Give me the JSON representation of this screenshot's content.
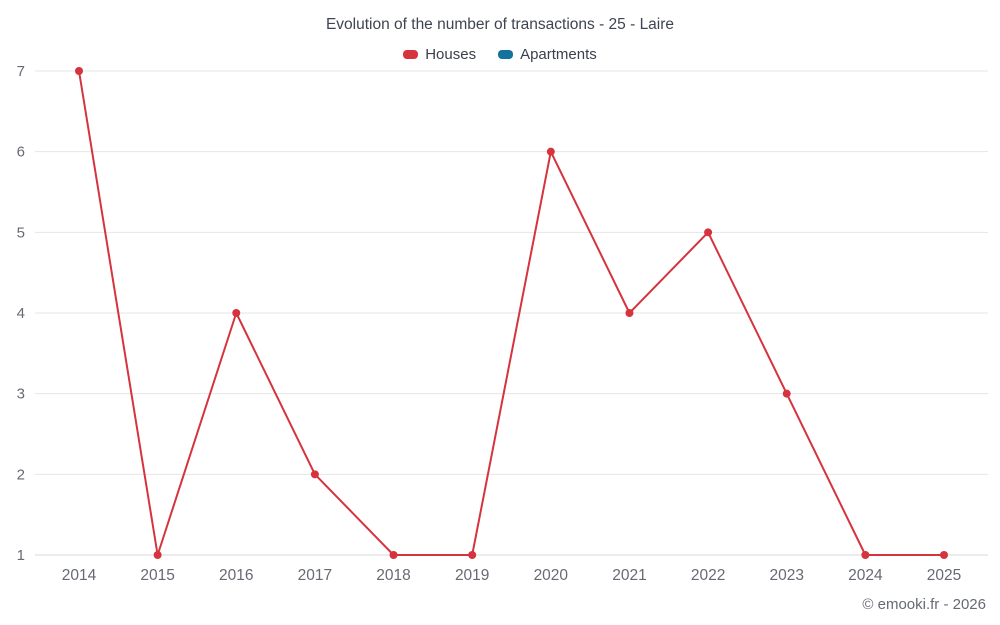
{
  "title": "Evolution of the number of transactions - 25 - Laire",
  "footer": "© emooki.fr - 2026",
  "legend": [
    {
      "label": "Houses",
      "color": "#d5343e"
    },
    {
      "label": "Apartments",
      "color": "#13739e"
    }
  ],
  "chart_data": {
    "type": "line",
    "x": [
      2014,
      2015,
      2016,
      2017,
      2018,
      2019,
      2020,
      2021,
      2022,
      2023,
      2024,
      2025
    ],
    "series": [
      {
        "name": "Houses",
        "color": "#d5343e",
        "values": [
          7,
          1,
          4,
          2,
          1,
          1,
          6,
          4,
          5,
          3,
          1,
          1
        ]
      },
      {
        "name": "Apartments",
        "color": "#13739e",
        "values": []
      }
    ],
    "title": "Evolution of the number of transactions - 25 - Laire",
    "xlabel": "",
    "ylabel": "",
    "ylim": [
      1,
      7
    ],
    "yticks": [
      1,
      2,
      3,
      4,
      5,
      6,
      7
    ],
    "grid": true,
    "grid_color": "#e6e6e6",
    "axis_text_color": "#666a73",
    "legend_position": "top"
  }
}
